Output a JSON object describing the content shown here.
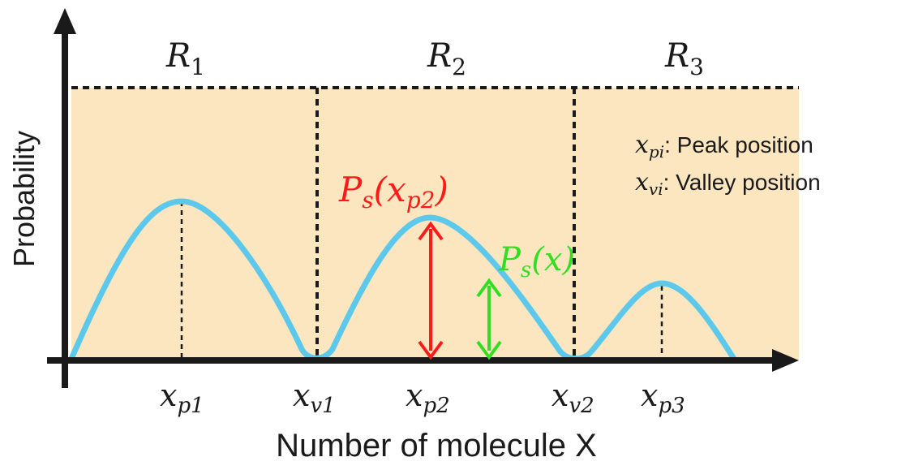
{
  "colors": {
    "background_fill": "#fbe6bf",
    "curve": "#5bc8ec",
    "axis": "#1a1a1a",
    "red_arrow": "#ff1a1a",
    "green_arrow": "#33dd22",
    "text": "#1a1a1a"
  },
  "axes": {
    "ylabel": "Probability",
    "xlabel": "Number of molecule X"
  },
  "regions": [
    {
      "label": "R",
      "sub": "1"
    },
    {
      "label": "R",
      "sub": "2"
    },
    {
      "label": "R",
      "sub": "3"
    }
  ],
  "ticks": [
    {
      "label": "x",
      "sub": "p1"
    },
    {
      "label": "x",
      "sub": "v1"
    },
    {
      "label": "x",
      "sub": "p2"
    },
    {
      "label": "x",
      "sub": "v2"
    },
    {
      "label": "x",
      "sub": "p3"
    }
  ],
  "legend": [
    {
      "symbol": "x",
      "sub": "pi",
      "text": ": Peak position"
    },
    {
      "symbol": "x",
      "sub": "vi",
      "text": ": Valley position"
    }
  ],
  "annotations": {
    "peak_label": {
      "P": "P",
      "sub": "s",
      "arg": "(x",
      "argsub": "p2",
      "close": ")"
    },
    "point_label": {
      "P": "P",
      "sub": "s",
      "arg": "(x)"
    }
  },
  "chart_data": {
    "type": "line",
    "x_points": [
      "0",
      "x_p1",
      "x_v1",
      "x_p2",
      "x_v2",
      "x_p3",
      "end"
    ],
    "peaks": [
      {
        "position": "x_p1",
        "relative_height": 0.85
      },
      {
        "position": "x_p2",
        "relative_height": 0.75
      },
      {
        "position": "x_p3",
        "relative_height": 0.4
      }
    ],
    "valleys": [
      {
        "position": "x_v1",
        "relative_height": 0
      },
      {
        "position": "x_v2",
        "relative_height": 0
      }
    ]
  }
}
